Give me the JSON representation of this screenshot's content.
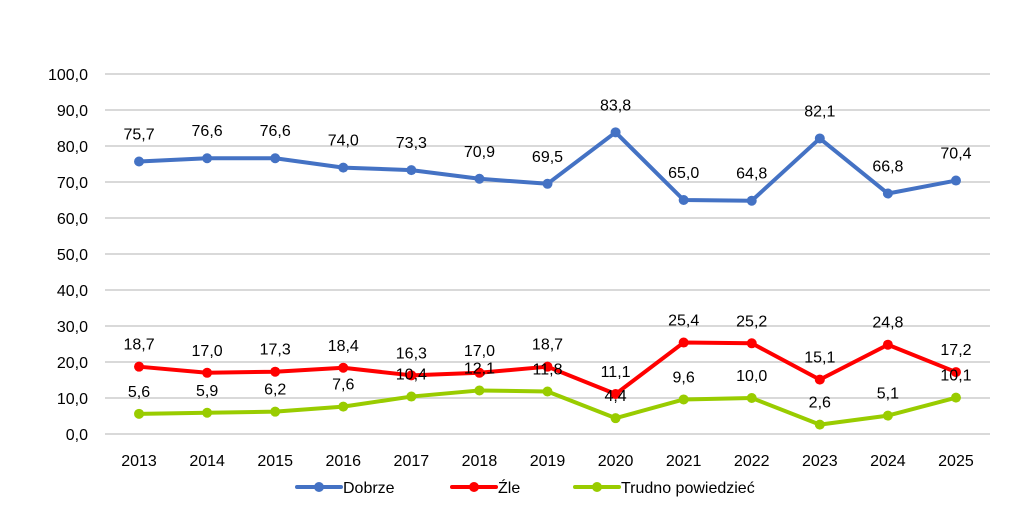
{
  "chart_data": {
    "type": "line",
    "title": "",
    "xlabel": "",
    "ylabel": "",
    "categories": [
      "2013",
      "2014",
      "2015",
      "2016",
      "2017",
      "2018",
      "2019",
      "2020",
      "2021",
      "2022",
      "2023",
      "2024",
      "2025"
    ],
    "ylim": [
      0,
      100
    ],
    "yticks": [
      0,
      10,
      20,
      30,
      40,
      50,
      60,
      70,
      80,
      90,
      100
    ],
    "ytick_labels": [
      "0,0",
      "10,0",
      "20,0",
      "30,0",
      "40,0",
      "50,0",
      "60,0",
      "70,0",
      "80,0",
      "90,0",
      "100,0"
    ],
    "grid": true,
    "legend_position": "bottom",
    "series": [
      {
        "name": "Dobrze",
        "color": "#4472C4",
        "values": [
          75.7,
          76.6,
          76.6,
          74.0,
          73.3,
          70.9,
          69.5,
          83.8,
          65.0,
          64.8,
          82.1,
          66.8,
          70.4
        ],
        "labels": [
          "75,7",
          "76,6",
          "76,6",
          "74,0",
          "73,3",
          "70,9",
          "69,5",
          "83,8",
          "65,0",
          "64,8",
          "82,1",
          "66,8",
          "70,4"
        ]
      },
      {
        "name": "Źle",
        "color": "#FF0000",
        "values": [
          18.7,
          17.0,
          17.3,
          18.4,
          16.3,
          17.0,
          18.7,
          11.1,
          25.4,
          25.2,
          15.1,
          24.8,
          17.2
        ],
        "labels": [
          "18,7",
          "17,0",
          "17,3",
          "18,4",
          "16,3",
          "17,0",
          "18,7",
          "11,1",
          "25,4",
          "25,2",
          "15,1",
          "24,8",
          "17,2"
        ]
      },
      {
        "name": "Trudno powiedzieć",
        "color": "#99CC00",
        "values": [
          5.6,
          5.9,
          6.2,
          7.6,
          10.4,
          12.1,
          11.8,
          4.4,
          9.6,
          10.0,
          2.6,
          5.1,
          10.1
        ],
        "labels": [
          "5,6",
          "5,9",
          "6,2",
          "7,6",
          "10,4",
          "12,1",
          "11,8",
          "4,4",
          "9,6",
          "10,0",
          "2,6",
          "5,1",
          "10,1"
        ]
      }
    ]
  }
}
